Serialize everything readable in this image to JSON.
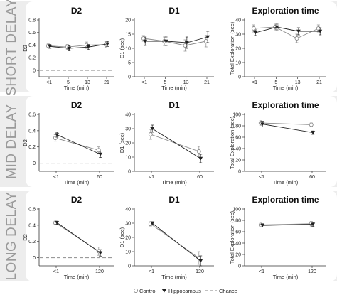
{
  "rows": [
    {
      "label": "SHORT DELAY",
      "panels": [
        {
          "title": "D2",
          "ylabel": "D2",
          "xlabel": "Time (min)",
          "x_ticks": [
            "<1",
            "5",
            "13",
            "21"
          ],
          "ylim": [
            -0.1,
            0.8
          ],
          "y_ticks": [
            "0",
            "0.2",
            "0.4",
            "0.6",
            "0.8"
          ],
          "y_tick_values": [
            0,
            0.2,
            0.4,
            0.6,
            0.8
          ],
          "chance": 0,
          "series": [
            {
              "name": "Control",
              "values": [
                0.39,
                0.37,
                0.4,
                0.41
              ],
              "err": [
                0.03,
                0.04,
                0.05,
                0.05
              ]
            },
            {
              "name": "Hippocampus",
              "values": [
                0.38,
                0.35,
                0.37,
                0.42
              ],
              "err": [
                0.03,
                0.04,
                0.04,
                0.04
              ]
            }
          ]
        },
        {
          "title": "D1",
          "ylabel": "D1 (sec)",
          "xlabel": "Time (min)",
          "x_ticks": [
            "<1",
            "5",
            "13",
            "21"
          ],
          "ylim": [
            0,
            20
          ],
          "y_ticks": [
            "0",
            "5",
            "10",
            "15",
            "20"
          ],
          "y_tick_values": [
            0,
            5,
            10,
            15,
            20
          ],
          "chance": null,
          "series": [
            {
              "name": "Control",
              "values": [
                13.5,
                12.5,
                11.0,
                12.5
              ],
              "err": [
                1.0,
                1.5,
                2.0,
                2.0
              ]
            },
            {
              "name": "Hippocampus",
              "values": [
                12.5,
                12.5,
                12.0,
                14.0
              ],
              "err": [
                1.5,
                1.5,
                2.0,
                2.0
              ]
            }
          ]
        },
        {
          "title": "Exploration time",
          "ylabel": "Total Exploration (sec)",
          "xlabel": "Time (min)",
          "x_ticks": [
            "<1",
            "5",
            "13",
            "21"
          ],
          "ylim": [
            0,
            40
          ],
          "y_ticks": [
            "0",
            "10",
            "20",
            "30",
            "40"
          ],
          "y_tick_values": [
            0,
            10,
            20,
            30,
            40
          ],
          "chance": null,
          "series": [
            {
              "name": "Control",
              "values": [
                34,
                35,
                27,
                34
              ],
              "err": [
                2.5,
                2.0,
                3.0,
                2.5
              ]
            },
            {
              "name": "Hippocampus",
              "values": [
                31,
                35,
                32,
                32
              ],
              "err": [
                2.0,
                2.0,
                2.5,
                2.5
              ]
            }
          ]
        }
      ]
    },
    {
      "label": "MID DELAY",
      "panels": [
        {
          "title": "D2",
          "ylabel": "D2",
          "xlabel": "Time (min)",
          "x_ticks": [
            "<1",
            "60"
          ],
          "ylim": [
            -0.1,
            0.6
          ],
          "y_ticks": [
            "0",
            "0.2",
            "0.4",
            "0.6"
          ],
          "y_tick_values": [
            0,
            0.2,
            0.4,
            0.6
          ],
          "chance": 0,
          "series": [
            {
              "name": "Control",
              "values": [
                0.31,
                0.16
              ],
              "err": [
                0.04,
                0.04
              ]
            },
            {
              "name": "Hippocampus",
              "values": [
                0.35,
                0.11
              ],
              "err": [
                0.03,
                0.04
              ]
            }
          ]
        },
        {
          "title": "D1",
          "ylabel": "D1 (sec)",
          "xlabel": "Time (min)",
          "x_ticks": [
            "<1",
            "60"
          ],
          "ylim": [
            0,
            40
          ],
          "y_ticks": [
            "0",
            "10",
            "20",
            "30",
            "40"
          ],
          "y_tick_values": [
            0,
            10,
            20,
            30,
            40
          ],
          "chance": null,
          "series": [
            {
              "name": "Control",
              "values": [
                26,
                14
              ],
              "err": [
                3.5,
                3.5
              ]
            },
            {
              "name": "Hippocampus",
              "values": [
                30,
                9
              ],
              "err": [
                2.5,
                3.0
              ]
            }
          ]
        },
        {
          "title": "Exploration time",
          "ylabel": "Total Exploration (sec)",
          "xlabel": "Time (min)",
          "x_ticks": [
            "<1",
            "60"
          ],
          "ylim": [
            0,
            100
          ],
          "y_ticks": [
            "0",
            "20",
            "40",
            "60",
            "80",
            "100"
          ],
          "y_tick_values": [
            0,
            20,
            40,
            60,
            80,
            100
          ],
          "chance": null,
          "series": [
            {
              "name": "Control",
              "values": [
                85,
                82
              ],
              "err": [
                4,
                3
              ]
            },
            {
              "name": "Hippocampus",
              "values": [
                83,
                68
              ],
              "err": [
                5,
                3
              ]
            }
          ]
        }
      ]
    },
    {
      "label": "LONG DELAY",
      "panels": [
        {
          "title": "D2",
          "ylabel": "D2",
          "xlabel": "Time (min)",
          "x_ticks": [
            "<1",
            "120"
          ],
          "ylim": [
            -0.1,
            0.6
          ],
          "y_ticks": [
            "0",
            "0.2",
            "0.4",
            "0.6"
          ],
          "y_tick_values": [
            0,
            0.2,
            0.4,
            0.6
          ],
          "chance": 0,
          "series": [
            {
              "name": "Control",
              "values": [
                0.43,
                0.08
              ],
              "err": [
                0.02,
                0.05
              ]
            },
            {
              "name": "Hippocampus",
              "values": [
                0.43,
                0.06
              ],
              "err": [
                0.02,
                0.04
              ]
            }
          ]
        },
        {
          "title": "D1",
          "ylabel": "D1 (sec)",
          "xlabel": "Time (min)",
          "x_ticks": [
            "<1",
            "120"
          ],
          "ylim": [
            0,
            40
          ],
          "y_ticks": [
            "0",
            "10",
            "20",
            "30",
            "40"
          ],
          "y_tick_values": [
            0,
            10,
            20,
            30,
            40
          ],
          "chance": null,
          "series": [
            {
              "name": "Control",
              "values": [
                29.5,
                5.5
              ],
              "err": [
                1.5,
                4.5
              ]
            },
            {
              "name": "Hippocampus",
              "values": [
                30,
                3.5
              ],
              "err": [
                1.0,
                3.5
              ]
            }
          ]
        },
        {
          "title": "Exploration time",
          "ylabel": "Total Exploration (sec)",
          "xlabel": "Time (min)",
          "x_ticks": [
            "<1",
            "120"
          ],
          "ylim": [
            0,
            100
          ],
          "y_ticks": [
            "0",
            "20",
            "40",
            "60",
            "80",
            "100"
          ],
          "y_tick_values": [
            0,
            20,
            40,
            60,
            80,
            100
          ],
          "chance": null,
          "series": [
            {
              "name": "Control",
              "values": [
                72,
                74
              ],
              "err": [
                3,
                4
              ]
            },
            {
              "name": "Hippocampus",
              "values": [
                71,
                73
              ],
              "err": [
                3,
                4
              ]
            }
          ]
        }
      ]
    }
  ],
  "legend": {
    "control": "Control",
    "hippocampus": "Hippocampus",
    "chance": "Chance"
  },
  "colors": {
    "control": "#8a8a8a",
    "hippocampus": "#222222",
    "chance": "#9a9a9a",
    "row_bg": "#ededed"
  },
  "chart_data": {
    "type": "line",
    "panels": [
      {
        "row": "SHORT DELAY",
        "title": "D2",
        "x": [
          "<1",
          "5",
          "13",
          "21"
        ],
        "series": [
          {
            "name": "Control",
            "values": [
              0.39,
              0.37,
              0.4,
              0.41
            ]
          },
          {
            "name": "Hippocampus",
            "values": [
              0.38,
              0.35,
              0.37,
              0.42
            ]
          }
        ],
        "ylabel": "D2",
        "xlabel": "Time (min)"
      },
      {
        "row": "SHORT DELAY",
        "title": "D1",
        "x": [
          "<1",
          "5",
          "13",
          "21"
        ],
        "series": [
          {
            "name": "Control",
            "values": [
              13.5,
              12.5,
              11.0,
              12.5
            ]
          },
          {
            "name": "Hippocampus",
            "values": [
              12.5,
              12.5,
              12.0,
              14.0
            ]
          }
        ],
        "ylabel": "D1 (sec)",
        "xlabel": "Time (min)"
      },
      {
        "row": "SHORT DELAY",
        "title": "Exploration time",
        "x": [
          "<1",
          "5",
          "13",
          "21"
        ],
        "series": [
          {
            "name": "Control",
            "values": [
              34,
              35,
              27,
              34
            ]
          },
          {
            "name": "Hippocampus",
            "values": [
              31,
              35,
              32,
              32
            ]
          }
        ],
        "ylabel": "Total Exploration (sec)",
        "xlabel": "Time (min)"
      },
      {
        "row": "MID DELAY",
        "title": "D2",
        "x": [
          "<1",
          "60"
        ],
        "series": [
          {
            "name": "Control",
            "values": [
              0.31,
              0.16
            ]
          },
          {
            "name": "Hippocampus",
            "values": [
              0.35,
              0.11
            ]
          }
        ],
        "ylabel": "D2",
        "xlabel": "Time (min)"
      },
      {
        "row": "MID DELAY",
        "title": "D1",
        "x": [
          "<1",
          "60"
        ],
        "series": [
          {
            "name": "Control",
            "values": [
              26,
              14
            ]
          },
          {
            "name": "Hippocampus",
            "values": [
              30,
              9
            ]
          }
        ],
        "ylabel": "D1 (sec)",
        "xlabel": "Time (min)"
      },
      {
        "row": "MID DELAY",
        "title": "Exploration time",
        "x": [
          "<1",
          "60"
        ],
        "series": [
          {
            "name": "Control",
            "values": [
              85,
              82
            ]
          },
          {
            "name": "Hippocampus",
            "values": [
              83,
              68
            ]
          }
        ],
        "ylabel": "Total Exploration (sec)",
        "xlabel": "Time (min)"
      },
      {
        "row": "LONG DELAY",
        "title": "D2",
        "x": [
          "<1",
          "120"
        ],
        "series": [
          {
            "name": "Control",
            "values": [
              0.43,
              0.08
            ]
          },
          {
            "name": "Hippocampus",
            "values": [
              0.43,
              0.06
            ]
          }
        ],
        "ylabel": "D2",
        "xlabel": "Time (min)"
      },
      {
        "row": "LONG DELAY",
        "title": "D1",
        "x": [
          "<1",
          "120"
        ],
        "series": [
          {
            "name": "Control",
            "values": [
              29.5,
              5.5
            ]
          },
          {
            "name": "Hippocampus",
            "values": [
              30,
              3.5
            ]
          }
        ],
        "ylabel": "D1 (sec)",
        "xlabel": "Time (min)"
      },
      {
        "row": "LONG DELAY",
        "title": "Exploration time",
        "x": [
          "<1",
          "120"
        ],
        "series": [
          {
            "name": "Control",
            "values": [
              72,
              74
            ]
          },
          {
            "name": "Hippocampus",
            "values": [
              71,
              73
            ]
          }
        ],
        "ylabel": "Total Exploration (sec)",
        "xlabel": "Time (min)"
      }
    ]
  }
}
